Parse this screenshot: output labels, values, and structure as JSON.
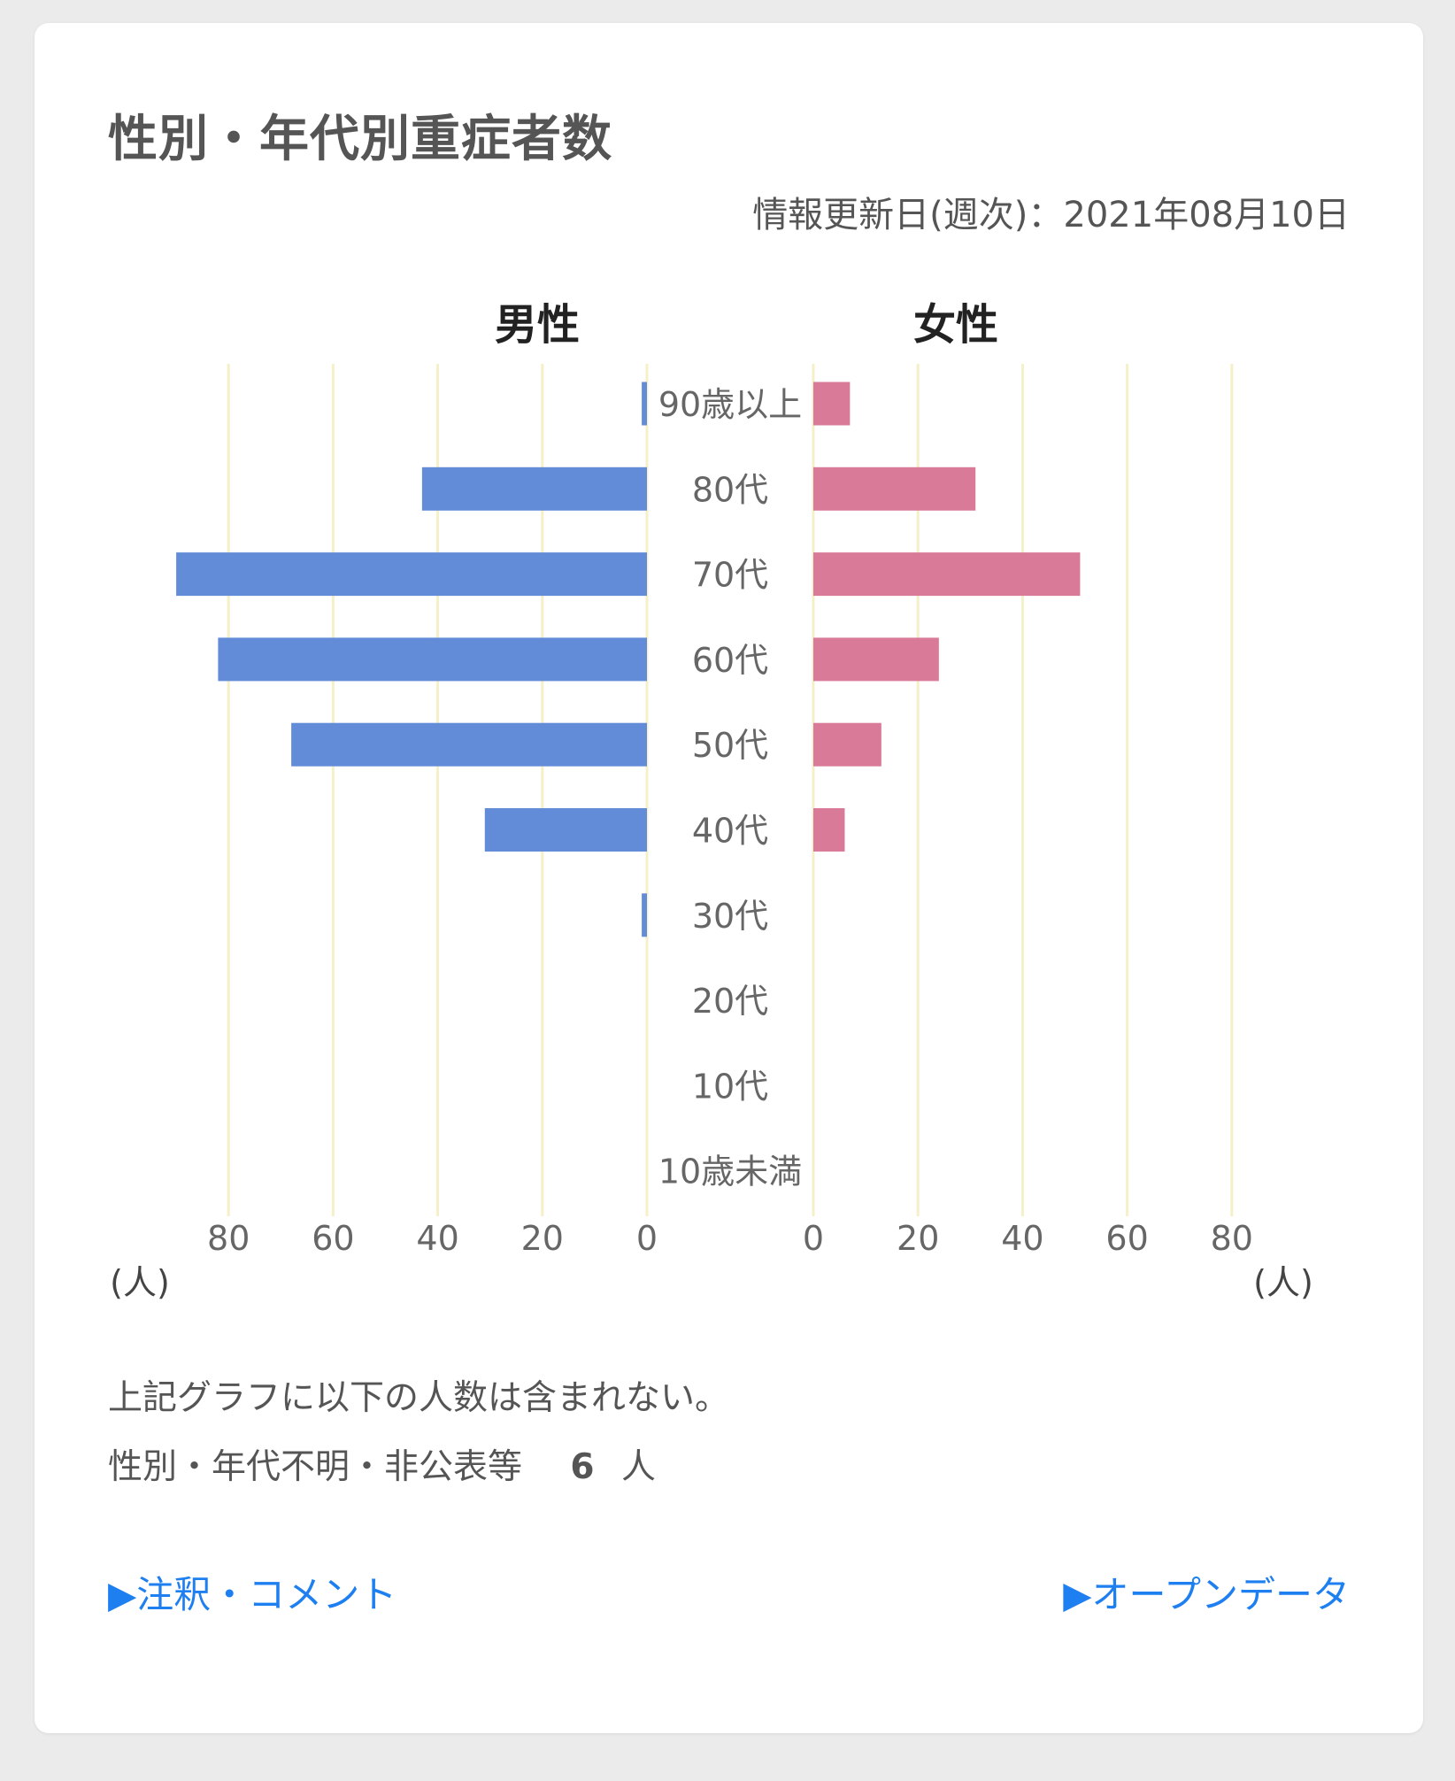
{
  "title": "性別・年代別重症者数",
  "updated": "情報更新日(週次)：2021年08月10日",
  "chart_data": {
    "type": "bar",
    "orientation": "horizontal-population-pyramid",
    "categories": [
      "90歳以上",
      "80代",
      "70代",
      "60代",
      "50代",
      "40代",
      "30代",
      "20代",
      "10代",
      "10歳未満"
    ],
    "series": [
      {
        "name": "男性",
        "color": "#628bd8",
        "values": [
          1,
          43,
          90,
          82,
          68,
          31,
          1,
          0,
          0,
          0
        ]
      },
      {
        "name": "女性",
        "color": "#d97b98",
        "values": [
          7,
          31,
          51,
          24,
          13,
          6,
          0,
          0,
          0,
          0
        ]
      }
    ],
    "xlim": [
      0,
      80
    ],
    "ticks": [
      "80",
      "60",
      "40",
      "20",
      "0"
    ],
    "ticks_right": [
      "0",
      "20",
      "40",
      "60",
      "80"
    ],
    "unit_label": "(人)",
    "grid": true,
    "grid_color": "#f6f0c8"
  },
  "notes": {
    "line1": "上記グラフに以下の人数は含まれない。",
    "line2_label": "性別・年代不明・非公表等",
    "line2_value": "6",
    "line2_unit": "人"
  },
  "links": {
    "comments": "▶注釈・コメント",
    "open_data": "▶オープンデータ"
  }
}
